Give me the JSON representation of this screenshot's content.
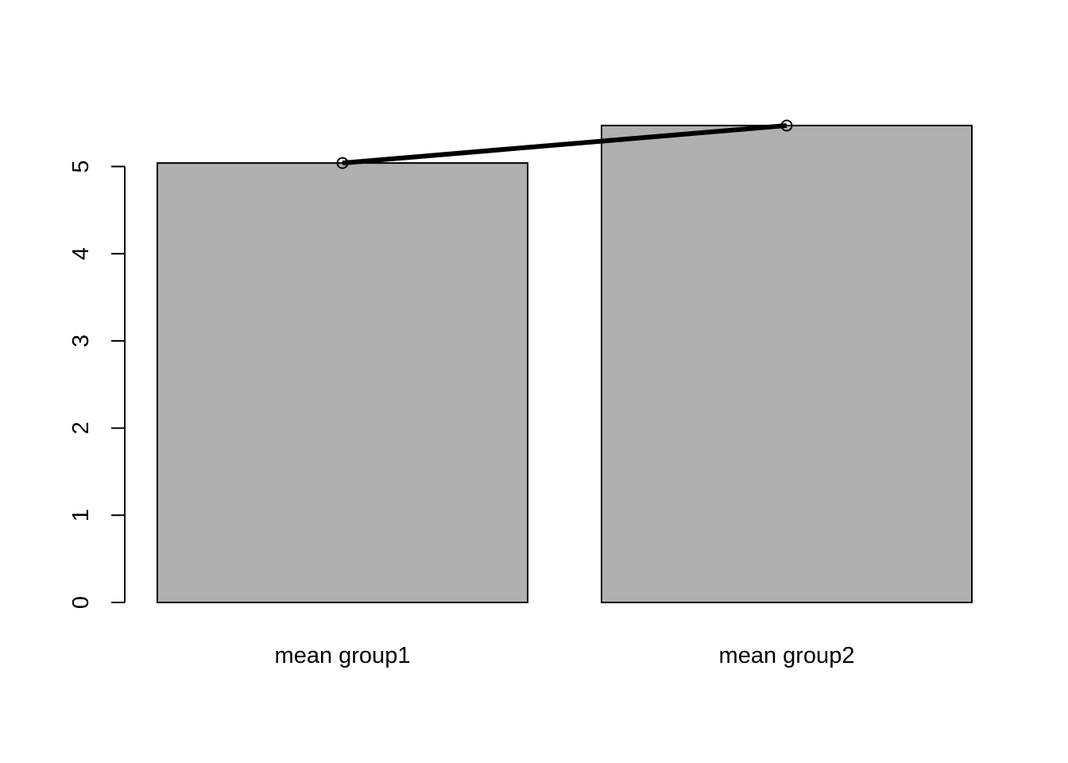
{
  "chart_data": {
    "type": "bar",
    "title": "",
    "xlabel": "",
    "ylabel": "",
    "categories": [
      "mean group1",
      "mean group2"
    ],
    "values": [
      5.04,
      5.47
    ],
    "ylim": [
      0,
      5.5
    ],
    "y_ticks": [
      0,
      1,
      2,
      3,
      4,
      5
    ],
    "overlay_line": {
      "values": [
        5.04,
        5.47
      ],
      "marker": "open-circle"
    },
    "grid": false,
    "legend": "none",
    "colors": {
      "bar_fill": "#b0b0b0",
      "bar_stroke": "#000000",
      "line": "#000000",
      "background": "#ffffff"
    }
  }
}
